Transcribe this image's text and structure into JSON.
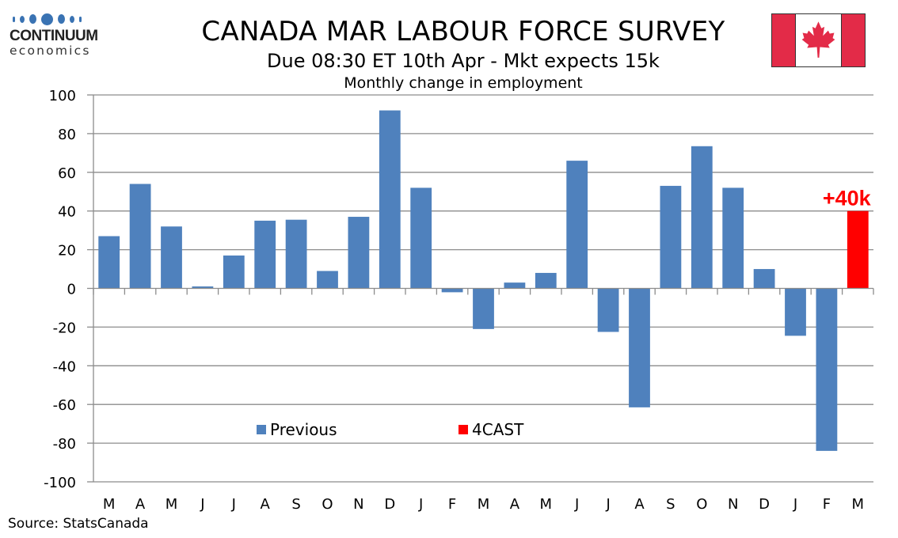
{
  "logo": {
    "name": "CONTINUUM",
    "subtitle": "economics"
  },
  "header": {
    "title": "CANADA MAR LABOUR FORCE SURVEY",
    "subtitle": "Due 08:30 ET 10th Apr - Mkt expects 15k",
    "chart_subtitle": "Monthly change in employment"
  },
  "flag": {
    "name": "Canada",
    "red": "#e32b48"
  },
  "source": "Source: StatsCanada",
  "colors": {
    "previous": "#4f81bd",
    "forecast": "#ff0000",
    "grid": "#8c8c8c"
  },
  "chart_data": {
    "type": "bar",
    "title": "Monthly change in employment",
    "xlabel": "",
    "ylabel": "",
    "ylim": [
      -100,
      100
    ],
    "yticks": [
      100,
      80,
      60,
      40,
      20,
      0,
      -20,
      -40,
      -60,
      -80,
      -100
    ],
    "grid": true,
    "categories": [
      "M",
      "A",
      "M",
      "J",
      "J",
      "A",
      "S",
      "O",
      "N",
      "D",
      "J",
      "F",
      "M",
      "A",
      "M",
      "J",
      "J",
      "A",
      "S",
      "O",
      "N",
      "D",
      "J",
      "F",
      "M"
    ],
    "series": [
      {
        "name": "Previous",
        "values": [
          27,
          54,
          32,
          1,
          17,
          35,
          35.5,
          9,
          37,
          92,
          52,
          -2,
          -21,
          3,
          8,
          66,
          -22.5,
          -61.5,
          53,
          73.5,
          52,
          10,
          -24.5,
          -84,
          null
        ]
      },
      {
        "name": "4CAST",
        "values": [
          null,
          null,
          null,
          null,
          null,
          null,
          null,
          null,
          null,
          null,
          null,
          null,
          null,
          null,
          null,
          null,
          null,
          null,
          null,
          null,
          null,
          null,
          null,
          null,
          40
        ]
      }
    ],
    "annotations": [
      {
        "text": "+40k",
        "category_index": 24,
        "value": 40
      }
    ],
    "legend": {
      "placement": "bottom-center inside plot",
      "items": [
        {
          "label": "Previous"
        },
        {
          "label": "4CAST"
        }
      ]
    }
  }
}
